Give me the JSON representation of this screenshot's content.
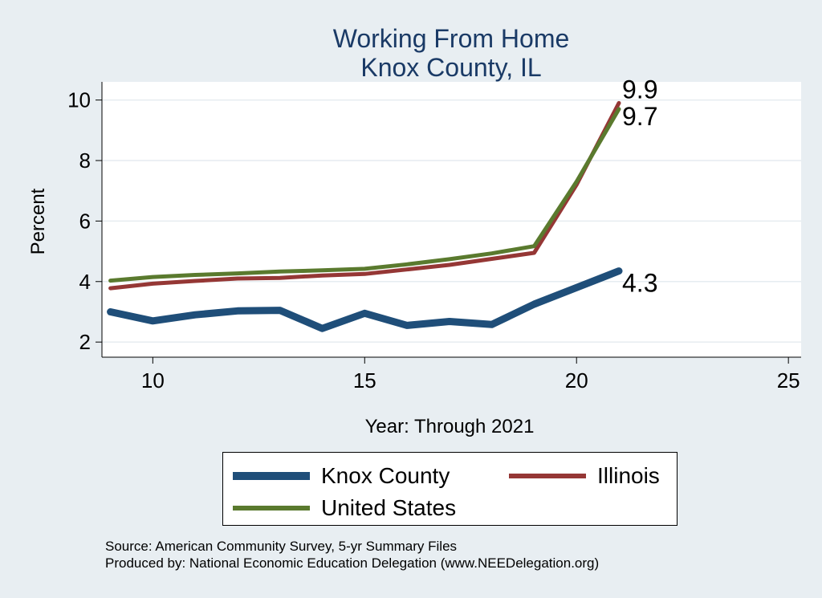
{
  "chart_data": {
    "type": "line",
    "title": [
      "Working From Home",
      "Knox County, IL"
    ],
    "xlabel": "Year: Through 2021",
    "ylabel": "Percent",
    "xlim": [
      8.8,
      25.3
    ],
    "ylim": [
      1.5,
      10.6
    ],
    "x_ticks": [
      10,
      15,
      20,
      25
    ],
    "y_ticks": [
      2,
      4,
      6,
      8,
      10
    ],
    "grid": true,
    "legend_position": "bottom",
    "x": [
      9,
      10,
      11,
      12,
      13,
      14,
      15,
      16,
      17,
      18,
      19,
      20,
      21
    ],
    "series": [
      {
        "name": "Knox County",
        "color": "#1f4e79",
        "values": [
          3.0,
          2.7,
          2.9,
          3.03,
          3.05,
          2.45,
          2.95,
          2.55,
          2.68,
          2.58,
          3.25,
          3.8,
          4.35
        ],
        "end_label": "4.3"
      },
      {
        "name": "Illinois",
        "color": "#953735",
        "values": [
          3.78,
          3.93,
          4.02,
          4.1,
          4.12,
          4.2,
          4.25,
          4.4,
          4.55,
          4.75,
          4.95,
          7.2,
          9.9
        ],
        "end_label": "9.9"
      },
      {
        "name": "United States",
        "color": "#5a7a2e",
        "values": [
          4.03,
          4.15,
          4.22,
          4.27,
          4.33,
          4.37,
          4.42,
          4.57,
          4.74,
          4.93,
          5.17,
          7.3,
          9.7
        ],
        "end_label": "9.7"
      }
    ]
  },
  "notes": {
    "source": "Source: American Community Survey, 5-yr Summary Files",
    "produced": "Produced by: National Economic Education Delegation (www.NEEDelegation.org)"
  }
}
